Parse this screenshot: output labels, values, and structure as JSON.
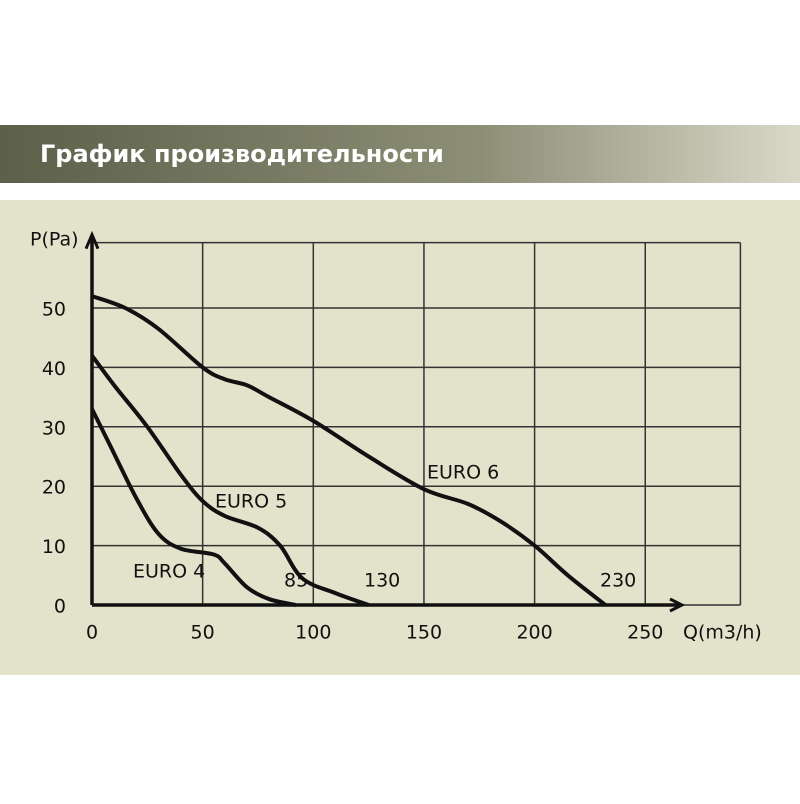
{
  "chart_data": {
    "type": "line",
    "title": "График производительности",
    "xlabel": "Q(m3/h)",
    "ylabel": "P(Pa)",
    "xlim": [
      0,
      293
    ],
    "ylim": [
      0,
      61
    ],
    "xticks": [
      0,
      50,
      100,
      150,
      200,
      250
    ],
    "yticks": [
      0,
      10,
      20,
      30,
      40,
      50
    ],
    "grid": true,
    "series": [
      {
        "name": "EURO 6",
        "color": "#111111",
        "x": [
          0,
          15,
          30,
          50,
          60,
          70,
          80,
          100,
          125,
          150,
          170,
          185,
          200,
          215,
          232
        ],
        "values": [
          52,
          50,
          46.5,
          40,
          38,
          37,
          35,
          31,
          25,
          19.5,
          17,
          14,
          10,
          5,
          0
        ]
      },
      {
        "name": "EURO 5",
        "color": "#111111",
        "x": [
          0,
          10,
          25,
          40,
          50,
          60,
          75,
          85,
          95,
          110,
          125
        ],
        "values": [
          42,
          37,
          30,
          22,
          17.5,
          15,
          13,
          10,
          4.5,
          2,
          0
        ]
      },
      {
        "name": "EURO 4",
        "color": "#111111",
        "x": [
          0,
          8,
          20,
          30,
          40,
          55,
          60,
          70,
          80,
          92
        ],
        "values": [
          33,
          27,
          18,
          12,
          9.5,
          8.5,
          7,
          3,
          1,
          0
        ]
      }
    ],
    "annotations": [
      "85",
      "130",
      "230"
    ]
  }
}
